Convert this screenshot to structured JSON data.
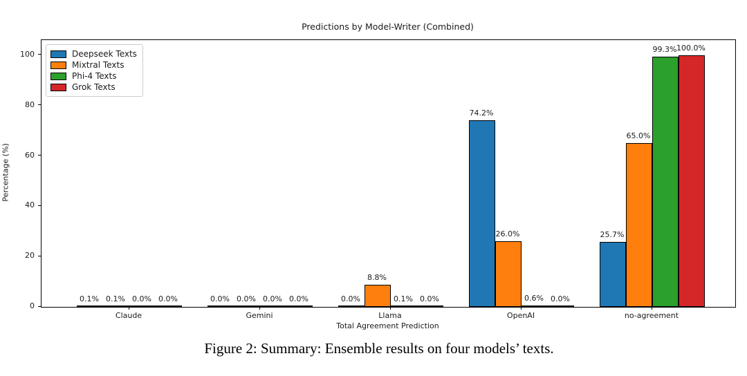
{
  "chart_data": {
    "type": "bar",
    "title": "Predictions by Model-Writer (Combined)",
    "xlabel": "Total Agreement Prediction",
    "ylabel": "Percentage (%)",
    "ylim": [
      0,
      106
    ],
    "yticks": [
      0,
      20,
      40,
      60,
      80,
      100
    ],
    "grid": false,
    "legend_position": "upper-left",
    "bar_edge_color": "#000000",
    "categories": [
      "Claude",
      "Gemini",
      "Llama",
      "OpenAI",
      "no-agreement"
    ],
    "series": [
      {
        "name": "Deepseek Texts",
        "color": "#1f77b4",
        "values": [
          0.1,
          0.0,
          0.0,
          74.2,
          25.7
        ],
        "labels": [
          "0.1%",
          "0.0%",
          "0.0%",
          "74.2%",
          "25.7%"
        ]
      },
      {
        "name": "Mixtral Texts",
        "color": "#ff7f0e",
        "values": [
          0.1,
          0.0,
          8.8,
          26.0,
          65.0
        ],
        "labels": [
          "0.1%",
          "0.0%",
          "8.8%",
          "26.0%",
          "65.0%"
        ]
      },
      {
        "name": "Phi-4 Texts",
        "color": "#2ca02c",
        "values": [
          0.0,
          0.0,
          0.1,
          0.6,
          99.3
        ],
        "labels": [
          "0.0%",
          "0.0%",
          "0.1%",
          "0.6%",
          "99.3%"
        ]
      },
      {
        "name": "Grok Texts",
        "color": "#d62728",
        "values": [
          0.0,
          0.0,
          0.0,
          0.0,
          100.0
        ],
        "labels": [
          "0.0%",
          "0.0%",
          "0.0%",
          "0.0%",
          "100.0%"
        ]
      }
    ]
  },
  "caption": "Figure 2: Summary: Ensemble results on four models’ texts."
}
